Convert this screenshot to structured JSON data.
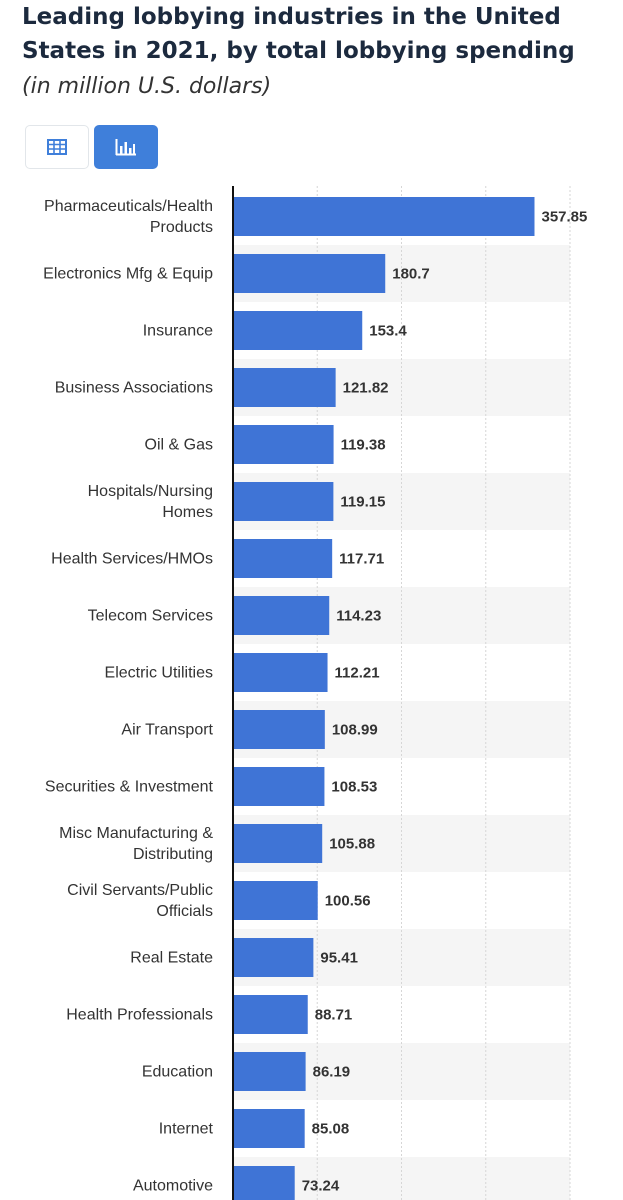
{
  "header": {
    "title": "Leading lobbying industries in the United States in 2021, by total lobbying spending",
    "subtitle": "(in million U.S. dollars)"
  },
  "view_toggle": {
    "table_icon": "table-icon",
    "chart_icon": "bar-chart-icon",
    "active": "chart",
    "accent": "#3f7fda"
  },
  "chart_data": {
    "type": "bar",
    "orientation": "horizontal",
    "title": "Leading lobbying industries in the United States in 2021, by total lobbying spending",
    "subtitle": "(in million U.S. dollars)",
    "xlabel": "",
    "ylabel": "",
    "xlim": [
      0,
      400
    ],
    "grid": true,
    "bar_color": "#3f74d6",
    "categories": [
      [
        "Pharmaceuticals/Health",
        "Products"
      ],
      [
        "Electronics Mfg & Equip"
      ],
      [
        "Insurance"
      ],
      [
        "Business Associations"
      ],
      [
        "Oil & Gas"
      ],
      [
        "Hospitals/Nursing",
        "Homes"
      ],
      [
        "Health Services/HMOs"
      ],
      [
        "Telecom Services"
      ],
      [
        "Electric Utilities"
      ],
      [
        "Air Transport"
      ],
      [
        "Securities & Investment"
      ],
      [
        "Misc Manufacturing &",
        "Distributing"
      ],
      [
        "Civil Servants/Public",
        "Officials"
      ],
      [
        "Real Estate"
      ],
      [
        "Health Professionals"
      ],
      [
        "Education"
      ],
      [
        "Internet"
      ],
      [
        "Automotive"
      ]
    ],
    "values": [
      357.85,
      180.7,
      153.4,
      121.82,
      119.38,
      119.15,
      117.71,
      114.23,
      112.21,
      108.99,
      108.53,
      105.88,
      100.56,
      95.41,
      88.71,
      86.19,
      85.08,
      73.24
    ],
    "value_labels": [
      "357.85",
      "180.7",
      "153.4",
      "121.82",
      "119.38",
      "119.15",
      "117.71",
      "114.23",
      "112.21",
      "108.99",
      "108.53",
      "105.88",
      "100.56",
      "95.41",
      "88.71",
      "86.19",
      "85.08",
      "73.24"
    ]
  }
}
